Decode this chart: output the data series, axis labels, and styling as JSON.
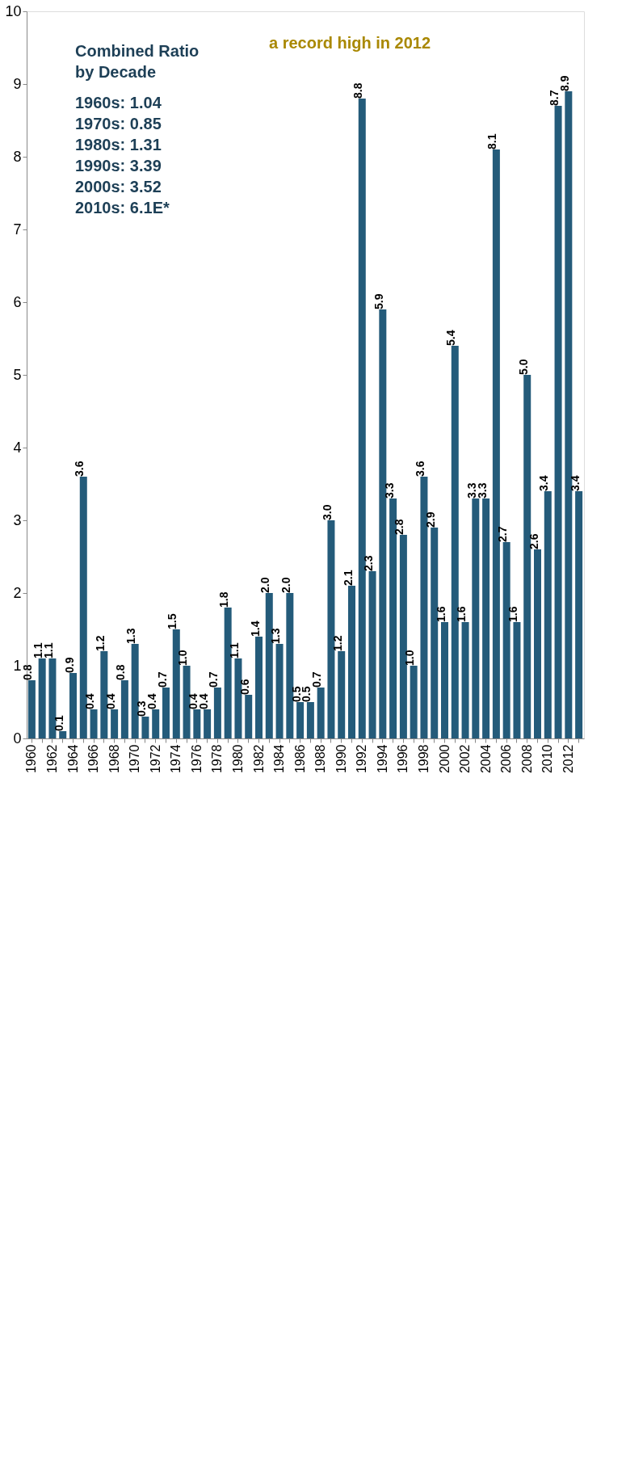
{
  "chart_data": {
    "type": "bar",
    "categories": [
      "1960",
      null,
      "1962",
      null,
      "1964",
      null,
      "1966",
      null,
      "1968",
      null,
      "1970",
      null,
      "1972",
      null,
      "1974",
      null,
      "1976",
      null,
      "1978",
      null,
      "1980",
      null,
      "1982",
      null,
      "1984",
      null,
      "1986",
      null,
      "1988",
      null,
      "1990",
      null,
      "1992",
      null,
      "1994",
      null,
      "1996",
      null,
      "1998",
      null,
      "2000",
      null,
      "2002",
      null,
      "2004",
      null,
      "2006",
      null,
      "2008",
      null,
      "2010",
      null,
      "2012",
      null
    ],
    "values": [
      0.8,
      1.1,
      1.1,
      0.1,
      0.9,
      3.6,
      0.4,
      1.2,
      0.4,
      0.8,
      1.3,
      0.3,
      0.4,
      0.7,
      1.5,
      1.0,
      0.4,
      0.4,
      0.7,
      1.8,
      1.1,
      0.6,
      1.4,
      2.0,
      1.3,
      2.0,
      0.5,
      0.5,
      0.7,
      3.0,
      1.2,
      2.1,
      8.8,
      2.3,
      5.9,
      3.3,
      2.8,
      1.0,
      3.6,
      2.9,
      1.6,
      5.4,
      1.6,
      3.3,
      3.3,
      8.1,
      2.7,
      1.6,
      5.0,
      2.6,
      3.4,
      8.7,
      8.9,
      3.4
    ],
    "color": "#245b7a",
    "ylim": [
      0,
      10
    ],
    "yticks": [
      0,
      1,
      2,
      3,
      4,
      5,
      6,
      7,
      8,
      9,
      10
    ],
    "value_labels": [
      "0.8",
      "1.1",
      "1.1",
      "0.1",
      "0.9",
      "3.6",
      "0.4",
      "1.2",
      "0.4",
      "0.8",
      "1.3",
      "0.3",
      "0.4",
      "0.7",
      "1.5",
      "1.0",
      "0.4",
      "0.4",
      "0.7",
      "1.8",
      "1.1",
      "0.6",
      "1.4",
      "2.0",
      "1.3",
      "2.0",
      "0.5",
      "0.5",
      "0.7",
      "3.0",
      "1.2",
      "2.1",
      "8.8",
      "2.3",
      "5.9",
      "3.3",
      "2.8",
      "1.0",
      "3.6",
      "2.9",
      "1.6",
      "5.4",
      "1.6",
      "3.3",
      "3.3",
      "8.1",
      "2.7",
      "1.6",
      "5.0",
      "2.6",
      "3.4",
      "8.7",
      "8.9",
      "3.4"
    ],
    "grid": false,
    "annotations": [
      "Combined Ratio",
      "by Decade",
      "1960s: 1.04",
      "1970s: 0.85",
      "1980s: 1.31",
      "1990s: 3.39",
      "2000s: 3.52",
      "2010s: 6.1E*",
      "a record high in 2012"
    ]
  }
}
